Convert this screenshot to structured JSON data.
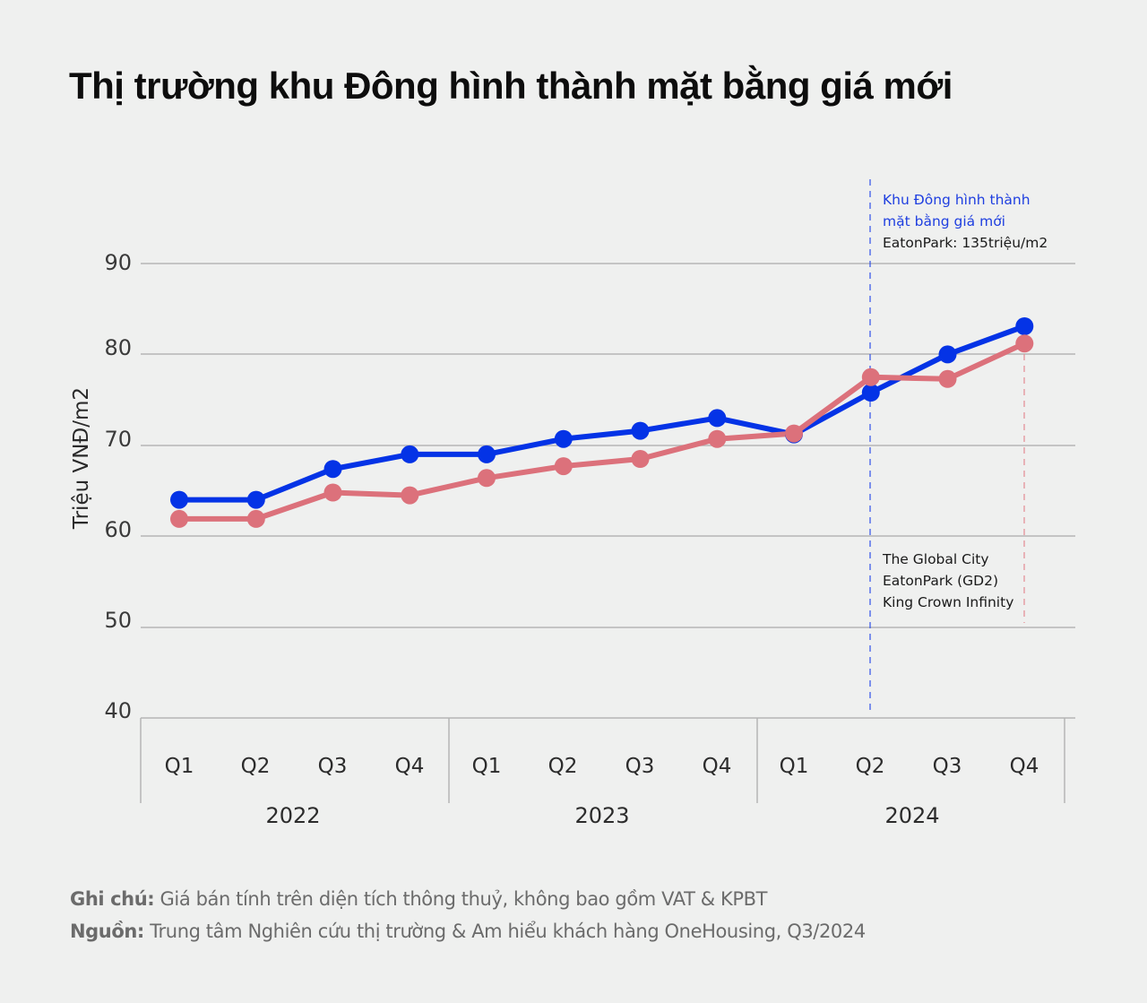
{
  "title": "Thị trường khu Đông hình thành mặt bằng giá mới",
  "colors": {
    "background": "#eff0ef",
    "blue_series": "#0433e6",
    "pink_series": "#dc717b",
    "grid": "#b5b5b5",
    "annotation_blue": "#1f3fe0",
    "annotation_dark": "#1a1a1a"
  },
  "chart_data": {
    "type": "line",
    "title": "Thị trường khu Đông hình thành mặt bằng giá mới",
    "xlabel": "",
    "ylabel": "Triệu VNĐ/m2",
    "ylim": [
      40,
      90
    ],
    "yticks": [
      90,
      80,
      70,
      60,
      50,
      40
    ],
    "grid": true,
    "categories": [
      "Q1",
      "Q2",
      "Q3",
      "Q4",
      "Q1",
      "Q2",
      "Q3",
      "Q4",
      "Q1",
      "Q2",
      "Q3",
      "Q4"
    ],
    "year_groups": [
      {
        "label": "2022",
        "quarters": [
          "Q1",
          "Q2",
          "Q3",
          "Q4"
        ]
      },
      {
        "label": "2023",
        "quarters": [
          "Q1",
          "Q2",
          "Q3",
          "Q4"
        ]
      },
      {
        "label": "2024",
        "quarters": [
          "Q1",
          "Q2",
          "Q3",
          "Q4"
        ]
      }
    ],
    "series": [
      {
        "name": "Blue series",
        "color": "#0433e6",
        "values": [
          64.0,
          64.0,
          67.4,
          69.0,
          69.0,
          70.7,
          71.6,
          73.0,
          71.2,
          75.8,
          80.0,
          83.1
        ]
      },
      {
        "name": "Pink series",
        "color": "#dc717b",
        "values": [
          61.9,
          61.9,
          64.8,
          64.5,
          66.4,
          67.7,
          68.5,
          70.7,
          71.3,
          77.5,
          77.3,
          81.2
        ]
      }
    ],
    "annotations": [
      {
        "at": "2024 Q2",
        "style": "dashed vertical blue line",
        "lines": [
          "Khu Đông hình thành",
          "mặt bằng giá mới",
          "EatonPark: 135triệu/m2"
        ]
      },
      {
        "at": "2024 Q4",
        "style": "dashed vertical pink line",
        "lines": [
          "The Global City",
          "EatonPark (GD2)",
          "King Crown Infinity"
        ]
      }
    ]
  },
  "axis": {
    "ylabel": "Triệu VNĐ/m2",
    "yticks": [
      "90",
      "80",
      "70",
      "60",
      "50",
      "40"
    ],
    "quarters": [
      "Q1",
      "Q2",
      "Q3",
      "Q4",
      "Q1",
      "Q2",
      "Q3",
      "Q4",
      "Q1",
      "Q2",
      "Q3",
      "Q4"
    ],
    "years": [
      "2022",
      "2023",
      "2024"
    ]
  },
  "annotation_top": {
    "line1": "Khu Đông hình thành",
    "line2": "mặt bằng giá mới",
    "line3": "EatonPark: 135triệu/m2"
  },
  "annotation_bottom": {
    "line1": "The Global City",
    "line2": "EatonPark (GD2)",
    "line3": "King Crown Infinity"
  },
  "footer": {
    "note_label": "Ghi chú:",
    "note_text": " Giá bán tính trên diện tích thông thuỷ, không bao gồm VAT & KPBT",
    "source_label": "Nguồn:",
    "source_text": " Trung tâm Nghiên cứu thị trường & Am hiểu khách hàng OneHousing, Q3/2024"
  }
}
